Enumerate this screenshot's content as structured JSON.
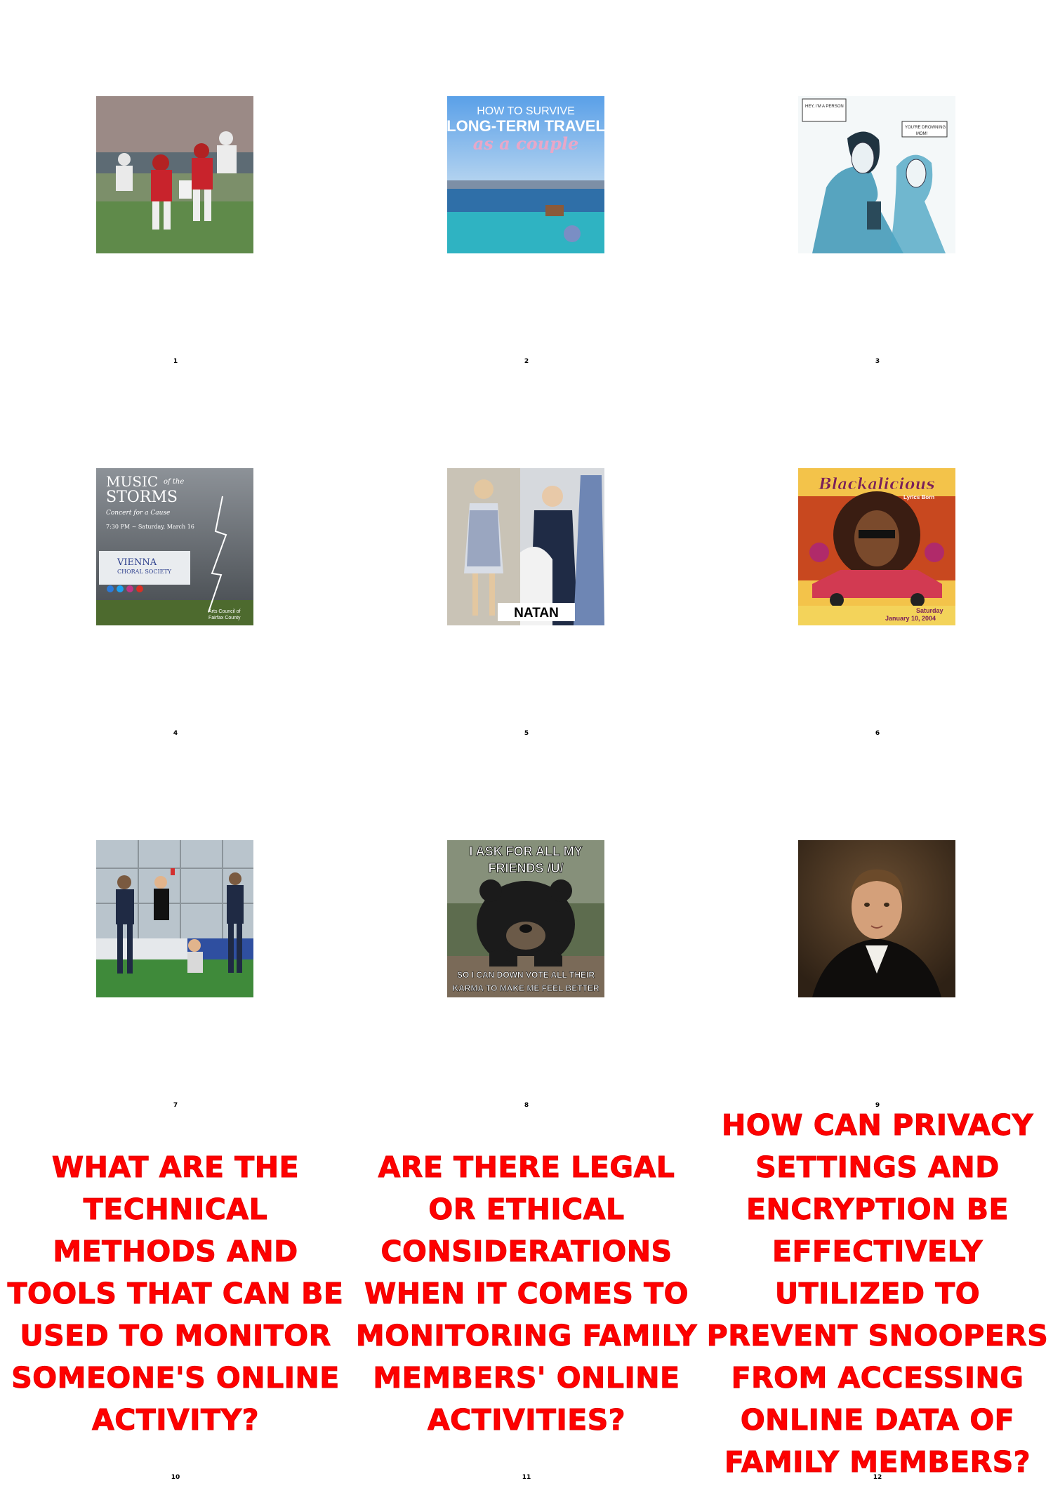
{
  "panels": [
    {
      "number": "1"
    },
    {
      "number": "2",
      "texts": [
        "HOW TO SURVIVE",
        "LONG-TERM TRAVEL",
        "as a couple"
      ]
    },
    {
      "number": "3",
      "texts": [
        "HEY, I'M A PERSON",
        "YOU'RE DROWNING",
        "MOM!"
      ]
    },
    {
      "number": "4",
      "texts": [
        "MUSIC",
        "of the",
        "STORMS",
        "Concert for a Cause",
        "7:30 PM ~ Saturday, March 16",
        "VIENNA",
        "CHORAL SOCIETY",
        "Arts Council of",
        "Fairfax County"
      ]
    },
    {
      "number": "5",
      "texts": [
        "NATAN"
      ]
    },
    {
      "number": "6",
      "texts": [
        "Blackalicious",
        "Lyrics Born",
        "Saturday",
        "January 10, 2004"
      ]
    },
    {
      "number": "7"
    },
    {
      "number": "8",
      "texts": [
        "I ASK FOR ALL MY",
        "FRIENDS /U/",
        "SO I CAN DOWN VOTE ALL THEIR",
        "KARMA TO MAKE ME FEEL BETTER"
      ]
    },
    {
      "number": "9"
    },
    {
      "number": "10",
      "question": "WHAT ARE THE TECHNICAL METHODS AND TOOLS THAT CAN BE USED TO MONITOR SOMEONE'S ONLINE ACTIVITY?"
    },
    {
      "number": "11",
      "question": "ARE THERE LEGAL OR ETHICAL CONSIDERATIONS WHEN IT COMES TO MONITORING FAMILY MEMBERS' ONLINE ACTIVITIES?"
    },
    {
      "number": "12",
      "question": "HOW CAN PRIVACY SETTINGS AND ENCRYPTION BE EFFECTIVELY UTILIZED TO PREVENT SNOOPERS FROM ACCESSING ONLINE DATA OF FAMILY MEMBERS?"
    }
  ]
}
